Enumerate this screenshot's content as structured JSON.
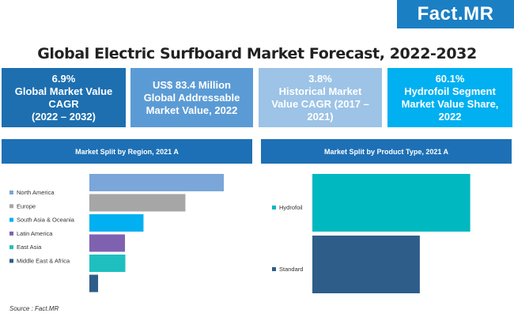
{
  "logo": "Fact.MR",
  "title": "Global Electric Surfboard Market Forecast, 2022-2032",
  "kpis": [
    {
      "text": "6.9%\nGlobal Market Value\nCAGR\n(2022 – 2032)",
      "color": "#1d6fb0"
    },
    {
      "text": "US$ 83.4 Million\nGlobal Addressable\nMarket Value, 2022",
      "color": "#5b9bd5"
    },
    {
      "text": "3.8%\nHistorical Market\nValue CAGR (2017 –\n2021)",
      "color": "#9dc3e6"
    },
    {
      "text": "60.1%\nHydrofoil Segment\nMarket Value Share,\n2022",
      "color": "#00b0f0"
    }
  ],
  "source": "Source : Fact.MR",
  "chart_data": [
    {
      "type": "bar",
      "orientation": "horizontal",
      "title": "Market Split by Region, 2021 A",
      "legend_position": "left",
      "series": [
        {
          "name": "North America",
          "value": 38.5,
          "color": "#7aa6d9"
        },
        {
          "name": "Europe",
          "value": 27.5,
          "color": "#a6a6a6"
        },
        {
          "name": "South Asia & Oceania",
          "value": 15.5,
          "color": "#00b0f0"
        },
        {
          "name": "Latin America",
          "value": 10.2,
          "color": "#7e62b0"
        },
        {
          "name": "East Asia",
          "value": 10.3,
          "color": "#1fbfbf"
        },
        {
          "name": "Middle East & Africa",
          "value": 2.5,
          "color": "#2e5d8a"
        }
      ],
      "xlim": [
        0,
        48
      ]
    },
    {
      "type": "bar",
      "orientation": "horizontal",
      "title": "Market Split by Product Type, 2021 A",
      "legend_position": "left",
      "series": [
        {
          "name": "Hydrofoil",
          "value": 59.5,
          "color": "#00b8c0"
        },
        {
          "name": "Standard",
          "value": 40.5,
          "color": "#2e5d8a"
        }
      ],
      "xlim": [
        0,
        76
      ]
    }
  ]
}
